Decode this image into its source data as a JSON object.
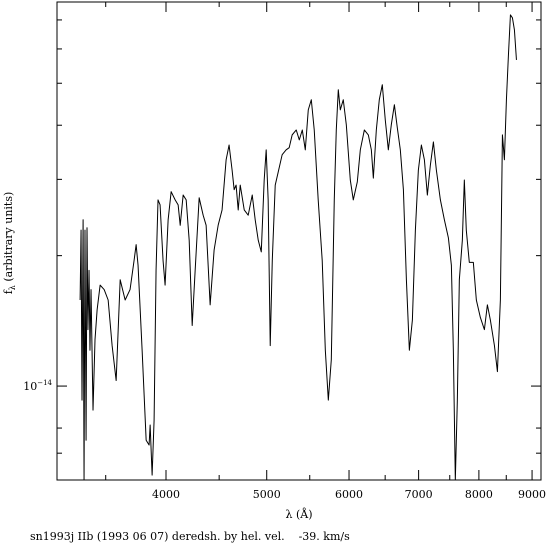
{
  "chart_data": {
    "type": "line",
    "xlabel": "λ (Å)",
    "ylabel": {
      "base": "f",
      "subscript": "λ",
      "rest": " (arbitrary units)"
    },
    "caption": "sn1993j IIb (1993 06 07) deredsh. by hel. vel.    -39. km/s",
    "xscale": "log",
    "yscale": "log",
    "xlim": [
      3142,
      9180
    ],
    "ylim": [
      6.07e-15,
      7.7e-14
    ],
    "xticks": [
      4000,
      5000,
      6000,
      7000,
      8000,
      9000
    ],
    "xminor_ticks": [
      3500,
      4500,
      5500,
      6500,
      7500,
      8500
    ],
    "yticks": [
      {
        "value": 1e-14,
        "label": {
          "base": "10",
          "exponent": "−14"
        }
      }
    ],
    "yminor_ticks": [
      7e-15,
      8e-15,
      2e-14,
      3e-14,
      4e-14,
      5e-14,
      6e-14,
      7e-14
    ],
    "color": "#000000",
    "x": [
      3307,
      3314,
      3321,
      3329,
      3336,
      3343,
      3351,
      3358,
      3365,
      3373,
      3380,
      3388,
      3403,
      3418,
      3434,
      3457,
      3488,
      3519,
      3550,
      3582,
      3614,
      3654,
      3694,
      3727,
      3744,
      3760,
      3794,
      3828,
      3853,
      3862,
      3879,
      3896,
      3913,
      3930,
      3948,
      3974,
      3992,
      4019,
      4046,
      4082,
      4109,
      4128,
      4155,
      4183,
      4211,
      4239,
      4267,
      4305,
      4343,
      4372,
      4411,
      4450,
      4490,
      4529,
      4570,
      4600,
      4631,
      4652,
      4672,
      4694,
      4715,
      4757,
      4799,
      4842,
      4874,
      4907,
      4940,
      4972,
      4994,
      5016,
      5039,
      5062,
      5095,
      5129,
      5174,
      5220,
      5255,
      5290,
      5338,
      5374,
      5410,
      5446,
      5482,
      5519,
      5555,
      5604,
      5654,
      5693,
      5731,
      5769,
      5807,
      5833,
      5859,
      5885,
      5924,
      5964,
      6017,
      6057,
      6111,
      6152,
      6207,
      6262,
      6304,
      6332,
      6374,
      6416,
      6459,
      6502,
      6546,
      6589,
      6634,
      6678,
      6722,
      6768,
      6813,
      6858,
      6904,
      6950,
      6996,
      7043,
      7090,
      7137,
      7185,
      7233,
      7281,
      7346,
      7411,
      7477,
      7527,
      7560,
      7593,
      7627,
      7661,
      7712,
      7746,
      7780,
      7832,
      7902,
      7955,
      8026,
      8098,
      8152,
      8206,
      8280,
      8335,
      8390,
      8428,
      8465,
      8503,
      8541,
      8579,
      8617,
      8655,
      8694
    ],
    "values": [
      1.58e-14,
      2.29e-14,
      9.28e-15,
      2.42e-14,
      6.07e-15,
      2.29e-14,
      7.5e-15,
      2.32e-14,
      1.35e-14,
      1.85e-14,
      1.21e-14,
      1.67e-14,
      8.8e-15,
      1.28e-14,
      1.5e-14,
      1.71e-14,
      1.67e-14,
      1.58e-14,
      1.24e-14,
      1.03e-14,
      1.76e-14,
      1.58e-14,
      1.67e-14,
      1.95e-14,
      2.12e-14,
      1.9e-14,
      1.21e-14,
      7.5e-15,
      7.31e-15,
      8.13e-15,
      6.23e-15,
      8.35e-15,
      1.85e-14,
      2.69e-14,
      2.62e-14,
      1.95e-14,
      1.71e-14,
      2.42e-14,
      2.81e-14,
      2.69e-14,
      2.62e-14,
      2.35e-14,
      2.76e-14,
      2.69e-14,
      2.17e-14,
      1.38e-14,
      1.85e-14,
      2.72e-14,
      2.48e-14,
      2.35e-14,
      1.54e-14,
      2.06e-14,
      2.35e-14,
      2.55e-14,
      3.33e-14,
      3.6e-14,
      3.15e-14,
      2.84e-14,
      2.91e-14,
      2.55e-14,
      2.91e-14,
      2.55e-14,
      2.48e-14,
      2.76e-14,
      2.42e-14,
      2.17e-14,
      2.04e-14,
      2.99e-14,
      3.51e-14,
      2.69e-14,
      1.24e-14,
      1.95e-14,
      2.91e-14,
      3.12e-14,
      3.42e-14,
      3.51e-14,
      3.55e-14,
      3.8e-14,
      3.9e-14,
      3.7e-14,
      3.9e-14,
      3.51e-14,
      4.34e-14,
      4.58e-14,
      3.9e-14,
      2.69e-14,
      1.95e-14,
      1.21e-14,
      9.28e-15,
      1.15e-14,
      2.69e-14,
      3.9e-14,
      4.83e-14,
      4.34e-14,
      4.58e-14,
      4.01e-14,
      2.99e-14,
      2.69e-14,
      2.96e-14,
      3.51e-14,
      3.9e-14,
      3.8e-14,
      3.51e-14,
      3.02e-14,
      3.9e-14,
      4.58e-14,
      4.96e-14,
      4.11e-14,
      3.51e-14,
      4.01e-14,
      4.46e-14,
      3.94e-14,
      3.51e-14,
      2.84e-14,
      1.76e-14,
      1.21e-14,
      1.42e-14,
      2.29e-14,
      3.15e-14,
      3.6e-14,
      3.33e-14,
      2.76e-14,
      3.24e-14,
      3.66e-14,
      3.15e-14,
      2.69e-14,
      2.42e-14,
      2.2e-14,
      1.9e-14,
      1.21e-14,
      6.07e-15,
      9.28e-15,
      1.76e-14,
      2.17e-14,
      2.99e-14,
      2.29e-14,
      1.93e-14,
      1.93e-14,
      1.58e-14,
      1.44e-14,
      1.35e-14,
      1.54e-14,
      1.42e-14,
      1.24e-14,
      1.08e-14,
      1.58e-14,
      3.8e-14,
      3.33e-14,
      4.58e-14,
      5.81e-14,
      7.19e-14,
      7.08e-14,
      6.64e-14,
      5.66e-14
    ]
  }
}
